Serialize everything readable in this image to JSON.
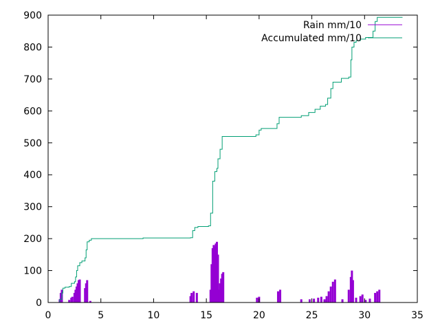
{
  "chart_data": {
    "type": "line",
    "title": "",
    "xlabel": "",
    "ylabel": "",
    "xlim": [
      0,
      35
    ],
    "ylim": [
      0,
      900
    ],
    "x_ticks": [
      0,
      5,
      10,
      15,
      20,
      25,
      30,
      35
    ],
    "y_ticks": [
      0,
      100,
      200,
      300,
      400,
      500,
      600,
      700,
      800,
      900
    ],
    "grid": false,
    "legend_position": "top-right",
    "series": [
      {
        "name": "Rain mm/10",
        "style": "impulses",
        "color": "#9400d3",
        "points": [
          [
            1.1,
            10
          ],
          [
            1.2,
            30
          ],
          [
            1.3,
            40
          ],
          [
            2.0,
            8
          ],
          [
            2.2,
            15
          ],
          [
            2.3,
            18
          ],
          [
            2.5,
            30
          ],
          [
            2.6,
            40
          ],
          [
            2.7,
            50
          ],
          [
            2.8,
            60
          ],
          [
            2.9,
            70
          ],
          [
            3.0,
            72
          ],
          [
            3.5,
            45
          ],
          [
            3.6,
            60
          ],
          [
            3.7,
            70
          ],
          [
            4.0,
            5
          ],
          [
            13.5,
            20
          ],
          [
            13.6,
            30
          ],
          [
            13.8,
            35
          ],
          [
            14.1,
            30
          ],
          [
            15.4,
            40
          ],
          [
            15.5,
            120
          ],
          [
            15.6,
            170
          ],
          [
            15.7,
            180
          ],
          [
            15.8,
            175
          ],
          [
            15.9,
            185
          ],
          [
            16.0,
            190
          ],
          [
            16.1,
            150
          ],
          [
            16.2,
            40
          ],
          [
            16.3,
            60
          ],
          [
            16.4,
            75
          ],
          [
            16.5,
            90
          ],
          [
            16.6,
            95
          ],
          [
            19.8,
            15
          ],
          [
            20.0,
            18
          ],
          [
            21.8,
            35
          ],
          [
            22.0,
            40
          ],
          [
            24.0,
            10
          ],
          [
            24.8,
            10
          ],
          [
            25.2,
            12
          ],
          [
            25.6,
            15
          ],
          [
            25.9,
            18
          ],
          [
            26.2,
            10
          ],
          [
            26.4,
            20
          ],
          [
            26.6,
            35
          ],
          [
            26.8,
            50
          ],
          [
            27.0,
            65
          ],
          [
            27.2,
            72
          ],
          [
            27.9,
            10
          ],
          [
            28.5,
            40
          ],
          [
            28.7,
            80
          ],
          [
            28.8,
            100
          ],
          [
            28.9,
            70
          ],
          [
            29.2,
            15
          ],
          [
            29.6,
            20
          ],
          [
            29.8,
            25
          ],
          [
            30.1,
            8
          ],
          [
            30.5,
            12
          ],
          [
            31.0,
            30
          ],
          [
            31.2,
            35
          ],
          [
            31.4,
            40
          ]
        ]
      },
      {
        "name": "Accumulated mm/10",
        "style": "steps",
        "color": "#009e73",
        "points": [
          [
            1.0,
            0
          ],
          [
            1.1,
            10
          ],
          [
            1.3,
            30
          ],
          [
            1.4,
            45
          ],
          [
            1.6,
            48
          ],
          [
            2.0,
            50
          ],
          [
            2.2,
            60
          ],
          [
            2.5,
            65
          ],
          [
            2.6,
            80
          ],
          [
            2.7,
            100
          ],
          [
            2.8,
            115
          ],
          [
            3.0,
            125
          ],
          [
            3.2,
            130
          ],
          [
            3.5,
            140
          ],
          [
            3.6,
            165
          ],
          [
            3.7,
            190
          ],
          [
            3.9,
            195
          ],
          [
            4.1,
            200
          ],
          [
            9.0,
            202
          ],
          [
            13.5,
            203
          ],
          [
            13.7,
            225
          ],
          [
            13.9,
            235
          ],
          [
            14.2,
            238
          ],
          [
            15.2,
            240
          ],
          [
            15.4,
            280
          ],
          [
            15.6,
            380
          ],
          [
            15.8,
            410
          ],
          [
            16.0,
            420
          ],
          [
            16.1,
            450
          ],
          [
            16.3,
            480
          ],
          [
            16.5,
            520
          ],
          [
            19.7,
            525
          ],
          [
            20.0,
            540
          ],
          [
            20.2,
            545
          ],
          [
            21.7,
            560
          ],
          [
            21.9,
            580
          ],
          [
            24.0,
            585
          ],
          [
            24.7,
            595
          ],
          [
            25.3,
            605
          ],
          [
            25.8,
            615
          ],
          [
            26.3,
            620
          ],
          [
            26.5,
            640
          ],
          [
            26.8,
            670
          ],
          [
            27.0,
            690
          ],
          [
            27.8,
            702
          ],
          [
            28.5,
            706
          ],
          [
            28.7,
            760
          ],
          [
            28.8,
            800
          ],
          [
            29.0,
            815
          ],
          [
            29.2,
            820
          ],
          [
            29.6,
            825
          ],
          [
            30.1,
            830
          ],
          [
            30.8,
            850
          ],
          [
            31.0,
            880
          ],
          [
            31.2,
            893
          ],
          [
            33.6,
            893
          ]
        ]
      }
    ]
  }
}
